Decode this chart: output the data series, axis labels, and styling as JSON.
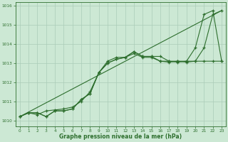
{
  "bg_color": "#cce8d4",
  "grid_color": "#aaccb8",
  "line_color": "#2d6e2d",
  "xlabel": "Graphe pression niveau de la mer (hPa)",
  "xlim": [
    -0.5,
    23.5
  ],
  "ylim": [
    1009.7,
    1016.2
  ],
  "yticks": [
    1010,
    1011,
    1012,
    1013,
    1014,
    1015,
    1016
  ],
  "xticks": [
    0,
    1,
    2,
    3,
    4,
    5,
    6,
    7,
    8,
    9,
    10,
    11,
    12,
    13,
    14,
    15,
    16,
    17,
    18,
    19,
    20,
    21,
    22,
    23
  ],
  "series1_x": [
    0,
    1,
    2,
    3,
    4,
    5,
    6,
    7,
    8,
    9,
    10,
    11,
    12,
    13,
    14,
    15,
    16,
    17,
    18,
    19,
    20,
    21,
    22,
    23
  ],
  "series1_y": [
    1010.2,
    1010.4,
    1010.4,
    1010.2,
    1010.5,
    1010.5,
    1010.6,
    1011.1,
    1011.4,
    1012.5,
    1013.1,
    1013.3,
    1013.3,
    1013.6,
    1013.35,
    1013.35,
    1013.35,
    1013.1,
    1013.1,
    1013.05,
    1013.1,
    1013.8,
    1015.55,
    1015.75
  ],
  "series2_x": [
    0,
    1,
    2,
    3,
    4,
    5,
    6,
    7,
    8,
    9,
    10,
    11,
    12,
    13,
    14,
    15,
    16,
    17,
    18,
    19,
    20,
    21,
    22,
    23
  ],
  "series2_y": [
    1010.2,
    1010.4,
    1010.4,
    1010.2,
    1010.5,
    1010.5,
    1010.6,
    1011.1,
    1011.4,
    1012.5,
    1013.0,
    1013.2,
    1013.3,
    1013.6,
    1013.35,
    1013.35,
    1013.1,
    1013.1,
    1013.05,
    1013.1,
    1013.1,
    1013.1,
    1013.1,
    1013.1
  ],
  "series3_x": [
    0,
    1,
    2,
    3,
    4,
    5,
    6,
    7,
    8,
    9,
    10,
    11,
    12,
    13,
    14,
    15,
    16,
    17,
    18,
    19,
    20,
    21,
    22,
    23
  ],
  "series3_y": [
    1010.2,
    1010.4,
    1010.3,
    1010.5,
    1010.55,
    1010.6,
    1010.7,
    1011.0,
    1011.5,
    1012.5,
    1013.0,
    1013.2,
    1013.3,
    1013.5,
    1013.3,
    1013.3,
    1013.1,
    1013.05,
    1013.1,
    1013.1,
    1013.8,
    1015.55,
    1015.75,
    1013.1
  ],
  "trend_x": [
    0,
    23
  ],
  "trend_y": [
    1010.2,
    1015.75
  ]
}
